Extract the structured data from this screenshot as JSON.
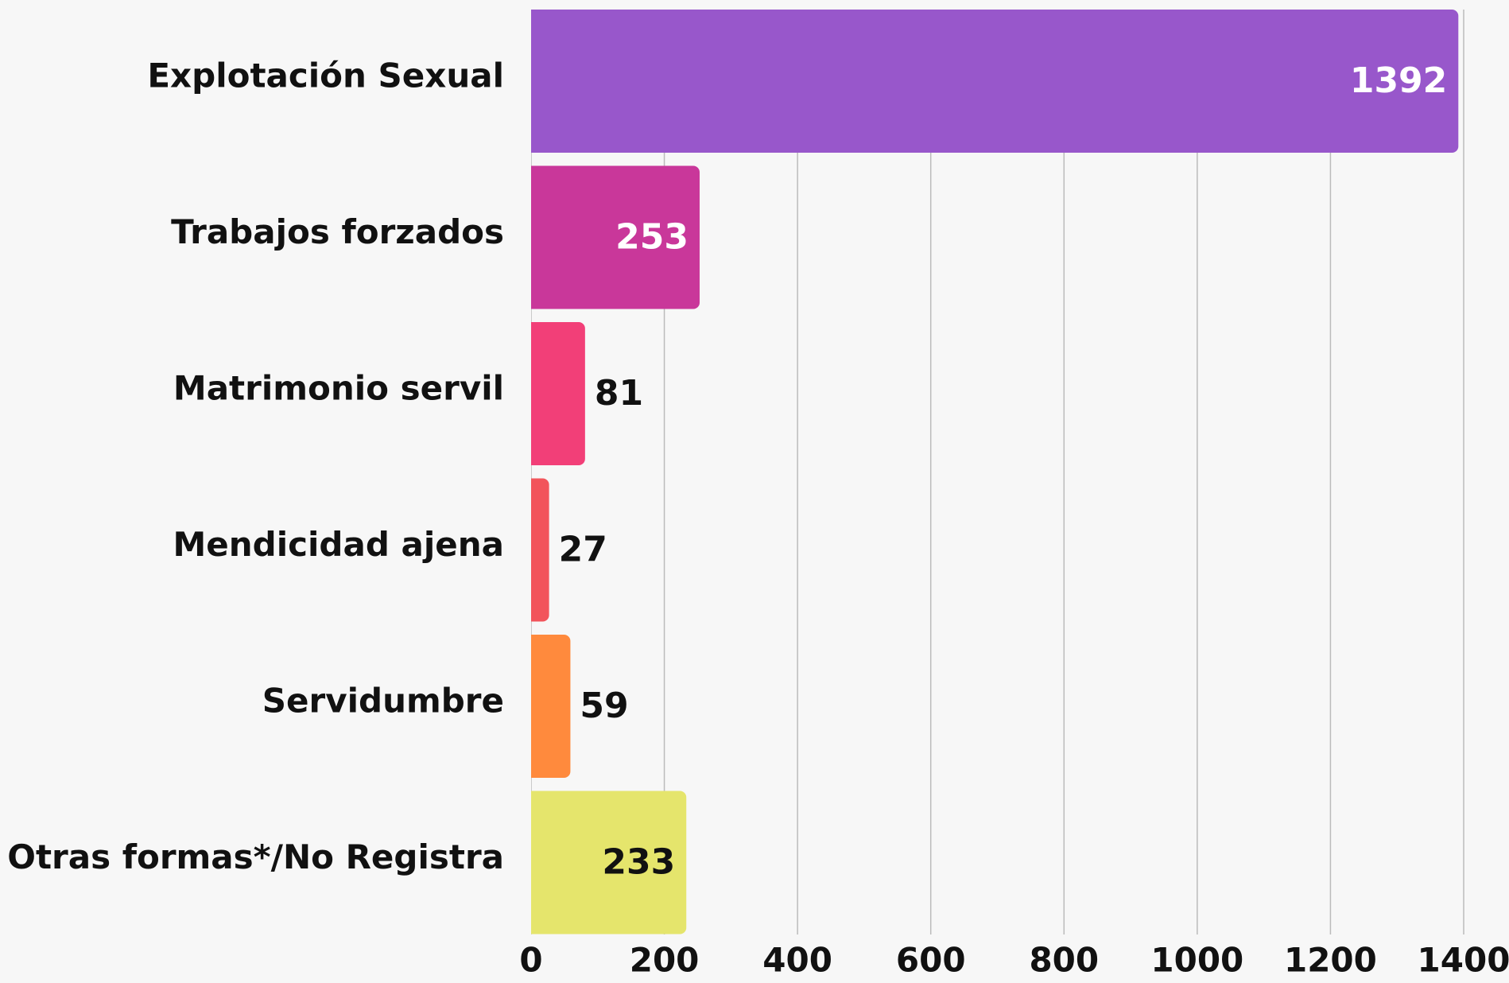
{
  "chart_data": {
    "type": "bar",
    "orientation": "horizontal",
    "categories": [
      "Explotación Sexual",
      "Trabajos forzados",
      "Matrimonio servil",
      "Mendicidad ajena",
      "Servidumbre",
      "Otras formas*/No Registra"
    ],
    "values": [
      1392,
      253,
      81,
      27,
      59,
      233
    ],
    "colors": [
      "#9857cb",
      "#c9379a",
      "#f23f78",
      "#f2545b",
      "#ff8a3d",
      "#e5e56c"
    ],
    "xlim": [
      0,
      1400
    ],
    "xticks": [
      0,
      200,
      400,
      600,
      800,
      1000,
      1200,
      1400
    ],
    "grid": true
  }
}
